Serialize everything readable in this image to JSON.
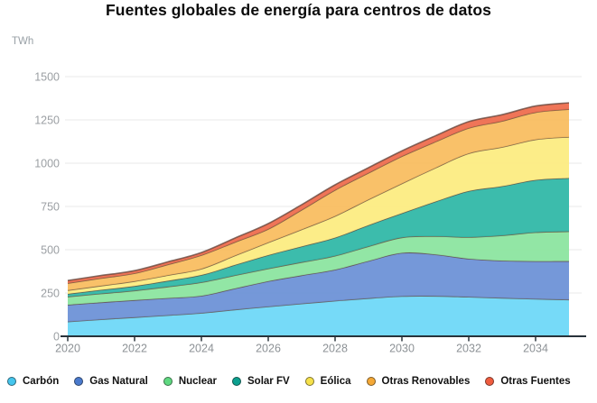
{
  "title": "Fuentes globales de energía para centros de datos",
  "chart_data": {
    "type": "area",
    "stacked": true,
    "title": "Fuentes globales de energía para centros de datos",
    "ylabel": "TWh",
    "xlabel": "",
    "ylim": [
      0,
      1500
    ],
    "xlim": [
      2020,
      2035
    ],
    "yticks": [
      0,
      250,
      500,
      750,
      1000,
      1250,
      1500
    ],
    "x": [
      2020,
      2021,
      2022,
      2023,
      2024,
      2025,
      2026,
      2027,
      2028,
      2029,
      2030,
      2031,
      2032,
      2033,
      2034,
      2035
    ],
    "x_tick_labels": [
      "2020",
      "2022",
      "2024",
      "2026",
      "2028",
      "2030",
      "2032",
      "2034"
    ],
    "grid": "horizontal",
    "legend_position": "bottom",
    "series": [
      {
        "name": "Carbón",
        "color": "#6cd7f7",
        "legend_dot_color": "#45c6ee",
        "values": [
          85,
          98,
          110,
          122,
          135,
          154,
          172,
          189,
          205,
          220,
          232,
          233,
          228,
          222,
          216,
          212
        ]
      },
      {
        "name": "Gas Natural",
        "color": "#6b90d6",
        "legend_dot_color": "#4a7acd",
        "values": [
          97,
          98,
          99,
          99,
          99,
          122,
          146,
          163,
          180,
          215,
          250,
          240,
          220,
          215,
          218,
          222
        ]
      },
      {
        "name": "Nuclear",
        "color": "#8ae49e",
        "legend_dot_color": "#5fd981",
        "values": [
          47,
          51,
          55,
          66,
          78,
          76,
          73,
          76,
          80,
          85,
          89,
          105,
          125,
          146,
          167,
          172
        ]
      },
      {
        "name": "Solar FV",
        "color": "#2db7a6",
        "legend_dot_color": "#0ba08f",
        "values": [
          16,
          21,
          26,
          34,
          42,
          60,
          78,
          91,
          105,
          122,
          140,
          200,
          266,
          284,
          302,
          308
        ]
      },
      {
        "name": "Eólica",
        "color": "#fcec7f",
        "legend_dot_color": "#f6e14a",
        "values": [
          21,
          24,
          28,
          32,
          36,
          54,
          73,
          98,
          125,
          148,
          172,
          195,
          218,
          226,
          234,
          238
        ]
      },
      {
        "name": "Otras Renovables",
        "color": "#f9bc5e",
        "legend_dot_color": "#f5a836",
        "values": [
          41,
          44,
          46,
          62,
          79,
          78,
          78,
          113,
          150,
          154,
          157,
          151,
          146,
          151,
          157,
          160
        ]
      },
      {
        "name": "Otras Fuentes",
        "color": "#ee6a4b",
        "legend_dot_color": "#f05c3e",
        "values": [
          15,
          15,
          15,
          15,
          15,
          23,
          31,
          30,
          30,
          30,
          31,
          34,
          37,
          36,
          36,
          37
        ]
      }
    ],
    "style": {
      "grid_color": "#e8e8e8",
      "axis_color": "#28323a",
      "tick_label_color": "#8d9296",
      "boundary_stroke_color": "#5d4037"
    }
  }
}
